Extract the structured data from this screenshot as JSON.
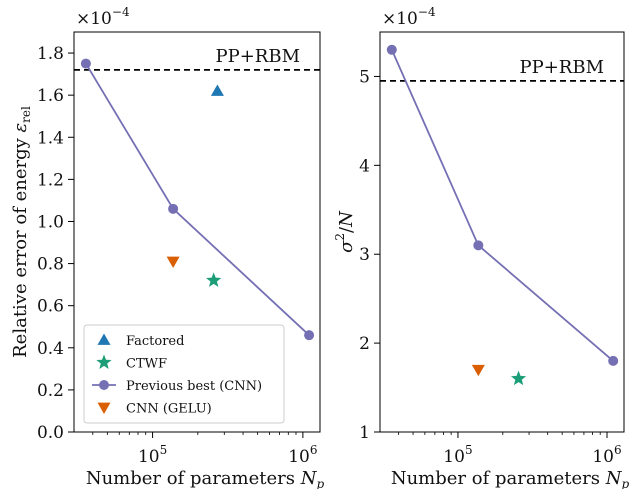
{
  "chart_data": [
    {
      "type": "line",
      "panel": "left",
      "xlabel": "Number of parameters N_p",
      "ylabel": "Relative error of energy ε_rel",
      "y_multiplier": "×10^-4",
      "x_scale": "log",
      "xlim": [
        30000,
        1300000
      ],
      "ylim": [
        0.0,
        1.9
      ],
      "x_ticks": [
        100000,
        1000000
      ],
      "x_tick_labels": [
        "10^5",
        "10^6"
      ],
      "y_ticks": [
        0.0,
        0.2,
        0.4,
        0.6,
        0.8,
        1.0,
        1.2,
        1.4,
        1.6,
        1.8
      ],
      "y_tick_labels": [
        "0.0",
        "0.2",
        "0.4",
        "0.6",
        "0.8",
        "1.0",
        "1.2",
        "1.4",
        "1.6",
        "1.8"
      ],
      "reference_line": {
        "label": "PP+RBM",
        "value": 1.72,
        "style": "dashed"
      },
      "legend_position": "lower-left",
      "series": [
        {
          "name": "Factored",
          "marker": "triangle-up",
          "color": "#1f77b4",
          "x": [
            270000
          ],
          "y": [
            1.62
          ]
        },
        {
          "name": "CTWF",
          "marker": "star",
          "color": "#1b9e77",
          "x": [
            255000
          ],
          "y": [
            0.72
          ]
        },
        {
          "name": "Previous best (CNN)",
          "marker": "circle",
          "line": true,
          "color": "#7570b3",
          "x": [
            36000,
            137000,
            1100000
          ],
          "y": [
            1.75,
            1.06,
            0.46
          ]
        },
        {
          "name": "CNN (GELU)",
          "marker": "triangle-down",
          "color": "#d95f02",
          "x": [
            137000
          ],
          "y": [
            0.81
          ]
        }
      ]
    },
    {
      "type": "line",
      "panel": "right",
      "xlabel": "Number of parameters N_p",
      "ylabel": "σ^2/N",
      "y_multiplier": "×10^-4",
      "x_scale": "log",
      "xlim": [
        30000,
        1300000
      ],
      "ylim": [
        1.0,
        5.5
      ],
      "x_ticks": [
        100000,
        1000000
      ],
      "x_tick_labels": [
        "10^5",
        "10^6"
      ],
      "y_ticks": [
        1,
        2,
        3,
        4,
        5
      ],
      "y_tick_labels": [
        "1",
        "2",
        "3",
        "4",
        "5"
      ],
      "reference_line": {
        "label": "PP+RBM",
        "value": 4.95,
        "style": "dashed"
      },
      "series": [
        {
          "name": "CTWF",
          "marker": "star",
          "color": "#1b9e77",
          "x": [
            255000
          ],
          "y": [
            1.6
          ]
        },
        {
          "name": "Previous best (CNN)",
          "marker": "circle",
          "line": true,
          "color": "#7570b3",
          "x": [
            36000,
            137000,
            1100000
          ],
          "y": [
            5.3,
            3.1,
            1.8
          ]
        },
        {
          "name": "CNN (GELU)",
          "marker": "triangle-down",
          "color": "#d95f02",
          "x": [
            137000
          ],
          "y": [
            1.7
          ]
        }
      ]
    }
  ]
}
